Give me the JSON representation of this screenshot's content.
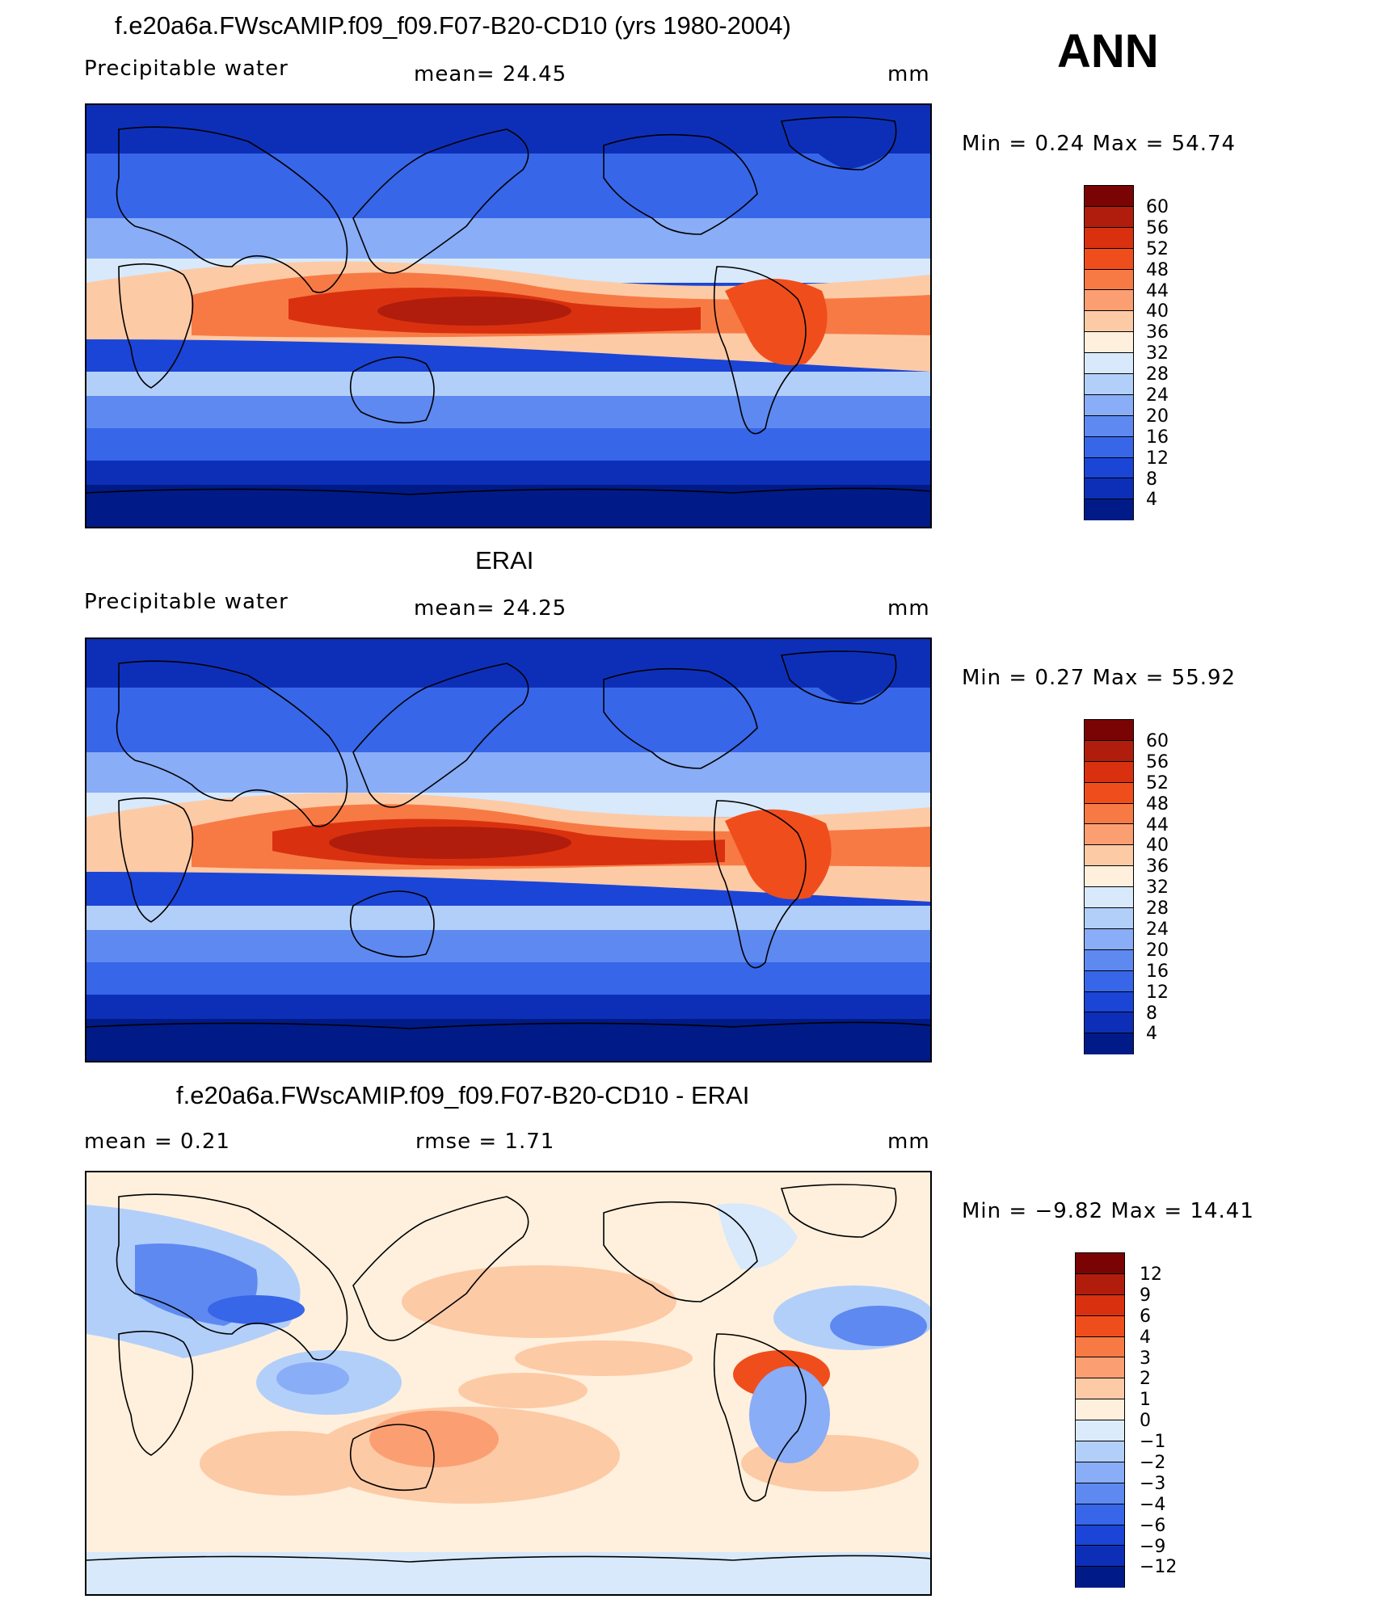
{
  "season": "ANN",
  "panels": [
    {
      "title": "f.e20a6a.FWscAMIP.f09_f09.F07-B20-CD10 (yrs 1980-2004)",
      "left_label": "Precipitable  water",
      "center_label": "mean=   24.45",
      "units": "mm",
      "minmax": "Min  =    0.24  Max  =    54.74"
    },
    {
      "title": "ERAI",
      "left_label": "Precipitable  water",
      "center_label": "mean=   24.25",
      "units": "mm",
      "minmax": "Min  =    0.27  Max  =    55.92"
    },
    {
      "title": "f.e20a6a.FWscAMIP.f09_f09.F07-B20-CD10 - ERAI",
      "left_label": "mean  =     0.21",
      "center_label": "rmse  =     1.71",
      "units": "mm",
      "minmax": "Min  =   −9.82  Max  =    14.41"
    }
  ],
  "chart_data": [
    {
      "type": "heatmap",
      "variable": "Precipitable water",
      "units": "mm",
      "mean": 24.45,
      "min": 0.24,
      "max": 54.74,
      "colorbar_levels": [
        60,
        56,
        52,
        48,
        44,
        40,
        36,
        32,
        28,
        24,
        20,
        16,
        12,
        8,
        4
      ]
    },
    {
      "type": "heatmap",
      "variable": "Precipitable water",
      "units": "mm",
      "mean": 24.25,
      "min": 0.27,
      "max": 55.92,
      "colorbar_levels": [
        60,
        56,
        52,
        48,
        44,
        40,
        36,
        32,
        28,
        24,
        20,
        16,
        12,
        8,
        4
      ]
    },
    {
      "type": "heatmap",
      "units": "mm",
      "mean": 0.21,
      "rmse": 1.71,
      "min": -9.82,
      "max": 14.41,
      "colorbar_levels": [
        12,
        9,
        6,
        4,
        3,
        2,
        1,
        0,
        -1,
        -2,
        -3,
        -4,
        -6,
        -9,
        -12
      ]
    }
  ],
  "colorbar_labels": {
    "abs": [
      "60",
      "56",
      "52",
      "48",
      "44",
      "40",
      "36",
      "32",
      "28",
      "24",
      "20",
      "16",
      "12",
      "8",
      "4"
    ],
    "diff": [
      "12",
      "9",
      "6",
      "4",
      "3",
      "2",
      "1",
      "0",
      "−1",
      "−2",
      "−3",
      "−4",
      "−6",
      "−9",
      "−12"
    ]
  },
  "colors": {
    "abs": [
      "#7a0403",
      "#b01d0c",
      "#d9310f",
      "#ef4e1c",
      "#f77a45",
      "#fb9f73",
      "#fdcaa6",
      "#fff0dd",
      "#d7e9fb",
      "#b2cffa",
      "#89adf6",
      "#5e89f0",
      "#3766e9",
      "#1b45d6",
      "#0d2fb8",
      "#001b87"
    ],
    "diff": [
      "#7a0403",
      "#b01d0c",
      "#d9310f",
      "#ef4e1c",
      "#f77a45",
      "#fb9f73",
      "#fdcaa6",
      "#fff0dd",
      "#dcebfc",
      "#b2cffa",
      "#89adf6",
      "#5e89f0",
      "#3766e9",
      "#1b45d6",
      "#0d2fb8",
      "#001b87"
    ]
  }
}
